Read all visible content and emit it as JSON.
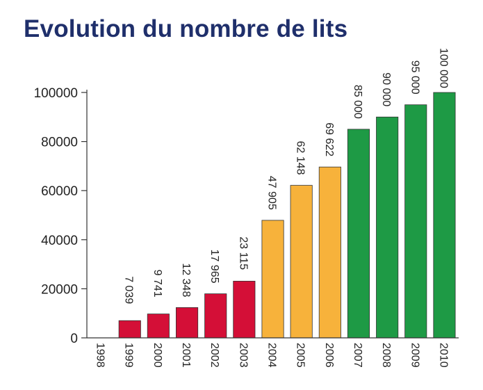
{
  "title": "Evolution du nombre de lits",
  "chart_data": {
    "type": "bar",
    "title": "Evolution du nombre de lits",
    "xlabel": "",
    "ylabel": "",
    "categories": [
      "1998",
      "1999",
      "2000",
      "2001",
      "2002",
      "2003",
      "2004",
      "2005",
      "2006",
      "2007",
      "2008",
      "2009",
      "2010"
    ],
    "values": [
      0,
      7039,
      9741,
      12348,
      17965,
      23115,
      47905,
      62148,
      69622,
      85000,
      90000,
      95000,
      100000
    ],
    "data_labels": [
      "",
      "7 039",
      "9 741",
      "12 348",
      "17 965",
      "23 115",
      "47 905",
      "62 148",
      "69 622",
      "85 000",
      "90 000",
      "95 000",
      "100 000"
    ],
    "ylim": [
      0,
      100000
    ],
    "yticks": [
      0,
      20000,
      40000,
      60000,
      80000,
      100000
    ],
    "ytick_labels": [
      "0",
      "20000",
      "40000",
      "60000",
      "80000",
      "100000"
    ],
    "grid": false,
    "legend": "none",
    "colors": [
      "#d40f37",
      "#d40f37",
      "#d40f37",
      "#d40f37",
      "#d40f37",
      "#d40f37",
      "#f7b23b",
      "#f7b23b",
      "#f7b23b",
      "#1e9a45",
      "#1e9a45",
      "#1e9a45",
      "#1e9a45"
    ],
    "edge_color": "#333333"
  }
}
